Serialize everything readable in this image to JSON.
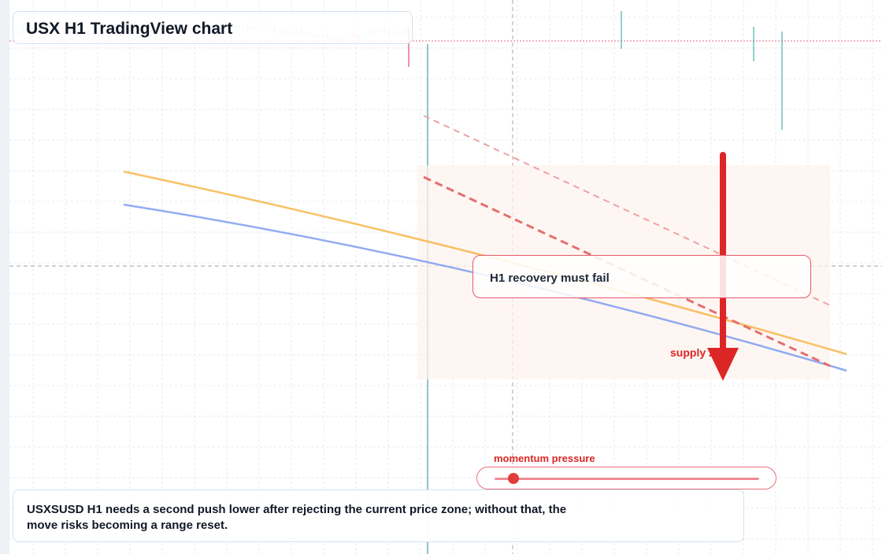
{
  "app": {
    "title": "USX H1 TradingView chart"
  },
  "callout": {
    "text": "H1 recovery must fail"
  },
  "zone": {
    "label": "supply zone"
  },
  "momentum": {
    "label": "momentum pressure",
    "level": 0.07
  },
  "note": {
    "text": "USXSUSD H1 needs a second push lower after rejecting the current price zone; without that, the move risks becoming a range reset."
  },
  "colors": {
    "bull": "#26a69a",
    "bear": "#e0234f",
    "ma_fast": "#f6b13f",
    "ma_slow": "#7f9df0",
    "trend": "#e23b3b",
    "arrow": "#dc2626",
    "zone_fill": "#fdf3ee",
    "grid": "#e6e9ee"
  },
  "chart_data": {
    "type": "candlestick",
    "title": "USX H1 TradingView chart",
    "grid": true,
    "series": [
      {
        "name": "",
        "type": "ohlc"
      },
      {
        "name": "",
        "type": "line"
      },
      {
        "name": "",
        "type": "line"
      }
    ]
  }
}
